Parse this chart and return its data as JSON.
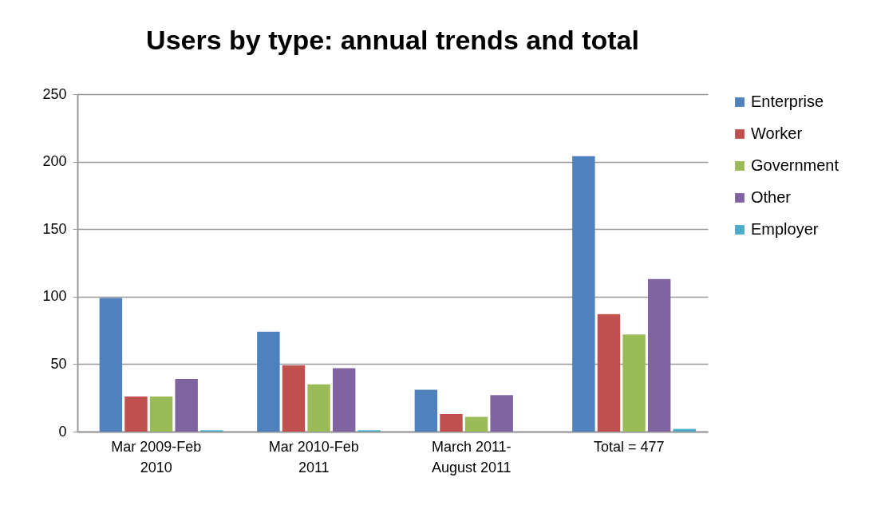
{
  "chart_data": {
    "type": "bar",
    "title": "Users by type: annual trends and total",
    "categories": [
      "Mar 2009-Feb 2010",
      "Mar 2010-Feb 2011",
      "March 2011- August 2011",
      "Total = 477"
    ],
    "series": [
      {
        "name": "Enterprise",
        "color": "#4f81bd",
        "values": [
          99,
          74,
          31,
          204
        ]
      },
      {
        "name": "Worker",
        "color": "#c0504d",
        "values": [
          26,
          49,
          13,
          87
        ]
      },
      {
        "name": "Government",
        "color": "#9bbb59",
        "values": [
          26,
          35,
          11,
          72
        ]
      },
      {
        "name": "Other",
        "color": "#8064a2",
        "values": [
          39,
          47,
          27,
          113
        ]
      },
      {
        "name": "Employer",
        "color": "#4bacc6",
        "values": [
          1,
          1,
          0,
          2
        ]
      }
    ],
    "ylim": [
      0,
      250
    ],
    "yticks": [
      0,
      50,
      100,
      150,
      200,
      250
    ],
    "grid": "y",
    "legend": "right"
  }
}
